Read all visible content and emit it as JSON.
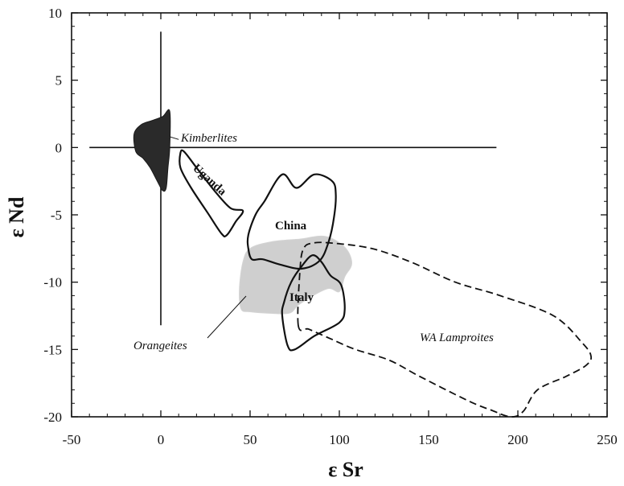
{
  "chart_data": {
    "type": "scatter",
    "title": "",
    "xlabel": "ε Sr",
    "ylabel": "ε Nd",
    "xlim": [
      -50,
      250
    ],
    "ylim": [
      -20,
      10
    ],
    "x_ticks": [
      "-50",
      "0",
      "50",
      "100",
      "150",
      "200",
      "250"
    ],
    "y_ticks": [
      "10",
      "5",
      "0",
      "-5",
      "-10",
      "-15",
      "-20"
    ],
    "grid": false,
    "reference_lines": [
      {
        "orientation": "horizontal",
        "y": 0,
        "x_range": [
          -40,
          188
        ]
      },
      {
        "orientation": "vertical",
        "x": 0,
        "y_range": [
          -13.2,
          8.6
        ]
      }
    ],
    "fields": [
      {
        "name": "Kimberlites",
        "style": "filled-dark",
        "label": "Kimberlites",
        "polygon": [
          [
            -14,
            -0.3
          ],
          [
            -15,
            1
          ],
          [
            -11,
            1.7
          ],
          [
            -5,
            2
          ],
          [
            1,
            2.3
          ],
          [
            5,
            2.7
          ],
          [
            5,
            0
          ],
          [
            4,
            -1.5
          ],
          [
            3,
            -3
          ],
          [
            1,
            -3.2
          ],
          [
            -2,
            -2.5
          ],
          [
            -6,
            -1.5
          ],
          [
            -10,
            -0.8
          ]
        ]
      },
      {
        "name": "Uganda",
        "style": "outline-solid",
        "label": "Uganda",
        "polygon": [
          [
            11,
            -0.4
          ],
          [
            13,
            -0.3
          ],
          [
            20,
            -1.5
          ],
          [
            30,
            -3.2
          ],
          [
            39,
            -4.5
          ],
          [
            46,
            -4.7
          ],
          [
            42,
            -5.5
          ],
          [
            37,
            -6.5
          ],
          [
            34,
            -6.4
          ],
          [
            26,
            -4.8
          ],
          [
            17,
            -3
          ],
          [
            11,
            -1.5
          ]
        ]
      },
      {
        "name": "China",
        "style": "outline-solid",
        "label": "China",
        "polygon": [
          [
            49,
            -6.5
          ],
          [
            49,
            -7.5
          ],
          [
            51,
            -8.3
          ],
          [
            57,
            -8.3
          ],
          [
            67,
            -8.7
          ],
          [
            79,
            -9
          ],
          [
            89,
            -8.4
          ],
          [
            94,
            -7
          ],
          [
            97,
            -5.2
          ],
          [
            98,
            -3.5
          ],
          [
            96,
            -2.5
          ],
          [
            86,
            -2
          ],
          [
            76,
            -3
          ],
          [
            68,
            -2
          ],
          [
            58,
            -4
          ],
          [
            53,
            -5
          ]
        ]
      },
      {
        "name": "Italy",
        "style": "outline-solid",
        "label": "Italy",
        "polygon": [
          [
            68,
            -12.5
          ],
          [
            71,
            -14.7
          ],
          [
            75,
            -15
          ],
          [
            86,
            -14
          ],
          [
            100,
            -13
          ],
          [
            103,
            -12
          ],
          [
            101,
            -10.2
          ],
          [
            95,
            -9.5
          ],
          [
            90,
            -8.5
          ],
          [
            85,
            -8
          ],
          [
            79,
            -8.8
          ],
          [
            73,
            -10
          ],
          [
            69,
            -11.5
          ]
        ]
      },
      {
        "name": "Orangeites",
        "style": "filled-light",
        "label": "Orangeites",
        "polygon": [
          [
            44,
            -10.5
          ],
          [
            45,
            -12
          ],
          [
            50,
            -12.2
          ],
          [
            60,
            -12.3
          ],
          [
            72,
            -12.3
          ],
          [
            78,
            -11.6
          ],
          [
            93,
            -10.5
          ],
          [
            100,
            -10.7
          ],
          [
            103,
            -9.6
          ],
          [
            107,
            -8.6
          ],
          [
            103,
            -7.4
          ],
          [
            92,
            -6.6
          ],
          [
            78,
            -6.8
          ],
          [
            62,
            -7
          ],
          [
            50,
            -7.5
          ],
          [
            46,
            -8.5
          ]
        ]
      },
      {
        "name": "WA Lamproites",
        "style": "outline-dashed",
        "label": "WA Lamproites",
        "polygon": [
          [
            77,
            -13.2
          ],
          [
            78,
            -9
          ],
          [
            80,
            -7.5
          ],
          [
            85,
            -7.1
          ],
          [
            96,
            -7.1
          ],
          [
            118,
            -7.5
          ],
          [
            140,
            -8.5
          ],
          [
            165,
            -10
          ],
          [
            190,
            -11
          ],
          [
            220,
            -12.5
          ],
          [
            236,
            -14.5
          ],
          [
            241,
            -15.5
          ],
          [
            238,
            -16.2
          ],
          [
            227,
            -17
          ],
          [
            211,
            -18
          ],
          [
            203,
            -19.6
          ],
          [
            196,
            -20
          ],
          [
            185,
            -19.5
          ],
          [
            172,
            -18.8
          ],
          [
            145,
            -17
          ],
          [
            128,
            -15.8
          ],
          [
            109,
            -15
          ],
          [
            95,
            -14.2
          ],
          [
            83,
            -13.5
          ]
        ]
      }
    ],
    "annotations": [
      {
        "text": "Kimberlites",
        "style": "italic"
      },
      {
        "text": "Orangeites",
        "style": "italic"
      },
      {
        "text": "WA Lamproites",
        "style": "italic"
      },
      {
        "text": "China",
        "style": "bold"
      },
      {
        "text": "Italy",
        "style": "bold"
      },
      {
        "text": "Uganda",
        "style": "bold"
      }
    ]
  }
}
